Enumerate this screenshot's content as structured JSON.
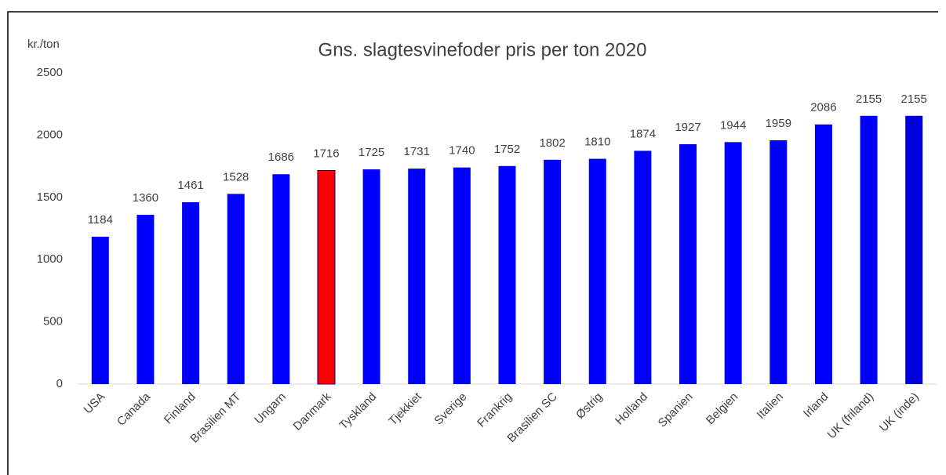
{
  "chart_data": {
    "type": "bar",
    "title": "Gns. slagtesvinefoder pris per ton 2020",
    "y_label": "kr./ton",
    "categories": [
      "USA",
      "Canada",
      "Finland",
      "Brasilien MT",
      "Ungarn",
      "Danmark",
      "Tyskland",
      "Tjekkiet",
      "Sverige",
      "Frankrig",
      "Brasilien SC",
      "Østrig",
      "Holland",
      "Spanien",
      "Belgien",
      "Italien",
      "Irland",
      "UK (friland)",
      "UK (inde)"
    ],
    "values": [
      1184,
      1360,
      1461,
      1528,
      1686,
      1716,
      1725,
      1731,
      1740,
      1752,
      1802,
      1810,
      1874,
      1927,
      1944,
      1959,
      2086,
      2155,
      2155
    ],
    "colors": [
      "#0000ff",
      "#0000ff",
      "#0000ff",
      "#0000ff",
      "#0000ff",
      "#ff0000",
      "#0000ff",
      "#0000ff",
      "#0000ff",
      "#0000ff",
      "#0000ff",
      "#0000ff",
      "#0000ff",
      "#0000ff",
      "#0000ff",
      "#0000ff",
      "#0000ff",
      "#0000ff",
      "#0000dd"
    ],
    "ylim": [
      0,
      2500
    ],
    "yticks": [
      0,
      500,
      1000,
      1500,
      2000,
      2500
    ],
    "grid": false
  }
}
